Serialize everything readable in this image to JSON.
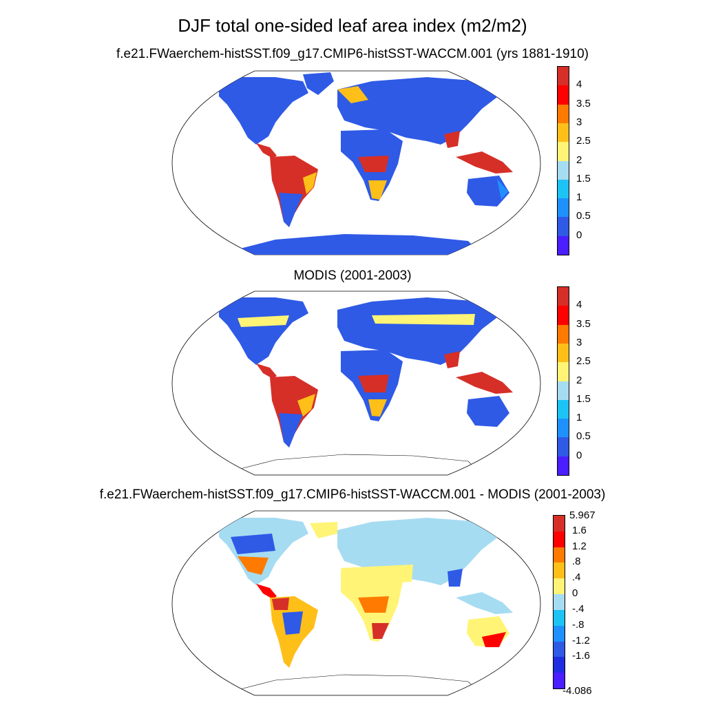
{
  "title": "DJF total one-sided leaf area index (m2/m2)",
  "panels": [
    {
      "title": "f.e21.FWaerchem-histSST.f09_g17.CMIP6-histSST-WACCM.001 (yrs 1881-1910)",
      "projection": "Robinson",
      "ocean_color": "#ffffff"
    },
    {
      "title": "MODIS (2001-2003)",
      "projection": "Robinson",
      "ocean_color": "#ffffff"
    },
    {
      "title": "f.e21.FWaerchem-histSST.f09_g17.CMIP6-histSST-WACCM.001 - MODIS (2001-2003)",
      "projection": "Robinson",
      "ocean_color": "#ffffff"
    }
  ],
  "colorbars": {
    "lai": {
      "labels": [
        "4",
        "3.5",
        "3",
        "2.5",
        "2",
        "1.5",
        "1",
        "0.5",
        "0"
      ],
      "colors_top_to_bottom": [
        "#d62f27",
        "#ff0000",
        "#ff7a00",
        "#ffbf19",
        "#fff475",
        "#a6dcf2",
        "#1ec3f5",
        "#1e91ff",
        "#2f5ae6",
        "#4a1eff"
      ]
    },
    "diff": {
      "end_labels": [
        "5.967",
        "-4.086"
      ],
      "labels": [
        "1.6",
        "1.2",
        ".8",
        ".4",
        "0",
        "-.4",
        "-.8",
        "-1.2",
        "-1.6"
      ],
      "colors_top_to_bottom": [
        "#d62f27",
        "#ff0000",
        "#ff7a00",
        "#ffbf19",
        "#fff475",
        "#a6dcf2",
        "#1ec3f5",
        "#1e91ff",
        "#2f5ae6",
        "#1f2ee0",
        "#4a1eff"
      ]
    }
  }
}
